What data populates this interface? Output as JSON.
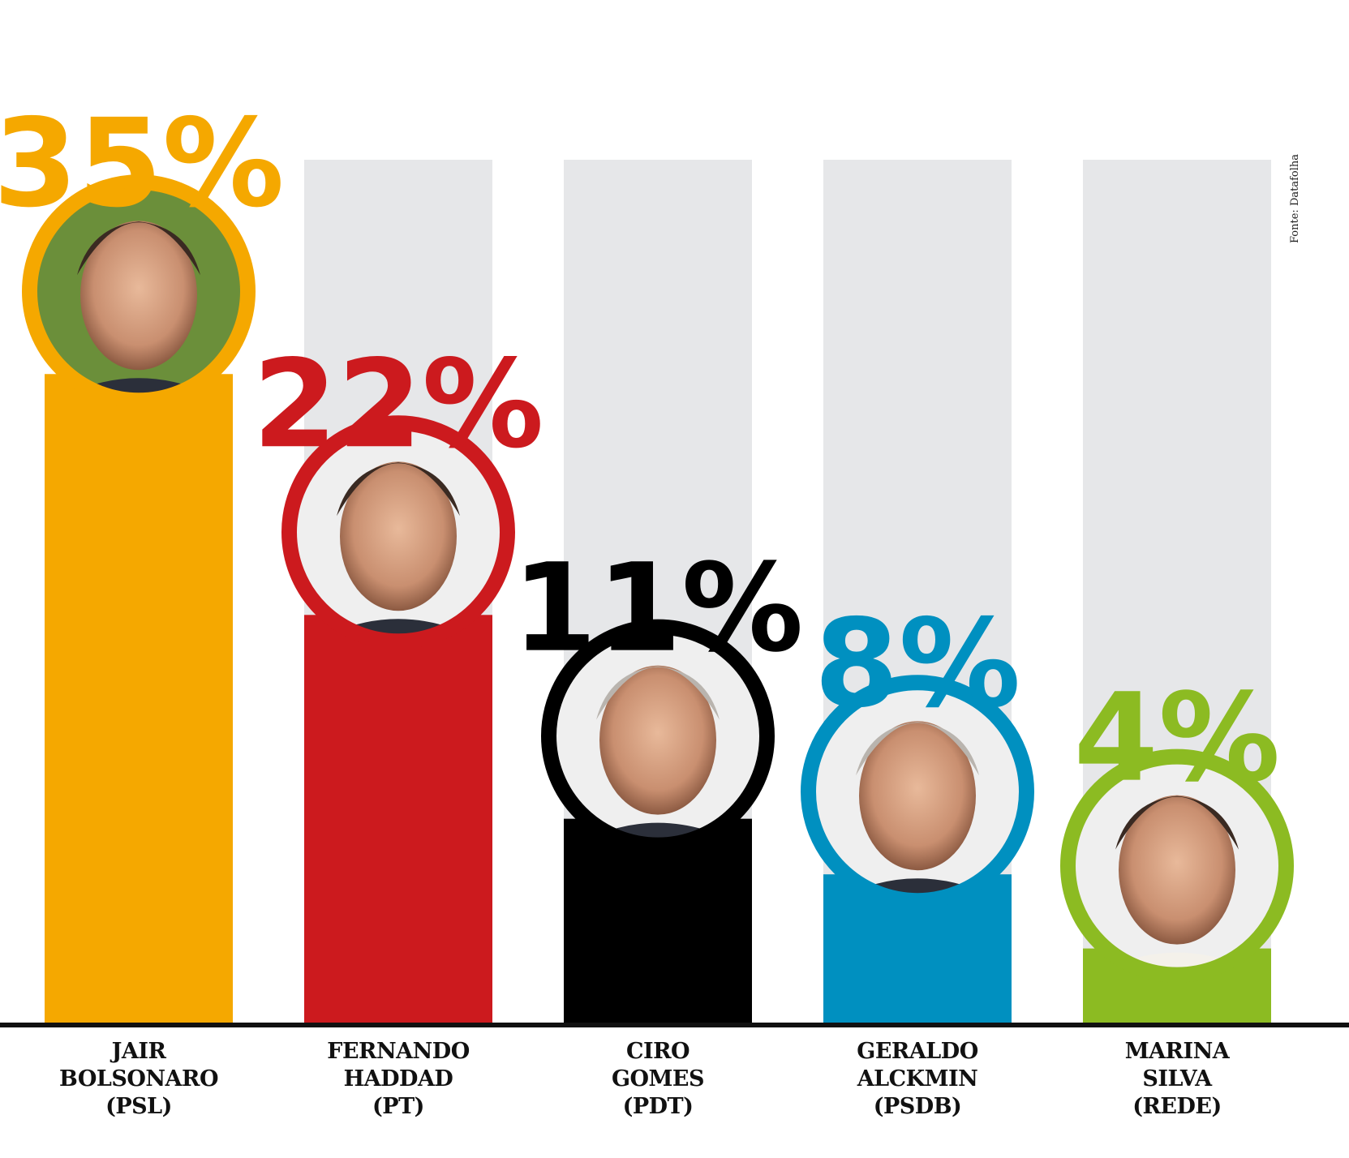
{
  "source": "Fonte: Datafolha",
  "chart_data": {
    "type": "bar",
    "ylim": [
      0,
      40
    ],
    "grid": false,
    "categories": [
      "JAIR BOLSONARO (PSL)",
      "FERNANDO HADDAD (PT)",
      "CIRO GOMES (PDT)",
      "GERALDO ALCKMIN (PSDB)",
      "MARINA SILVA (REDE)"
    ],
    "values": [
      35,
      22,
      11,
      8,
      4
    ],
    "value_labels": [
      "35%",
      "22%",
      "11%",
      "8%",
      "4%"
    ],
    "label_lines": [
      [
        "JAIR",
        "BOLSONARO",
        "(PSL)"
      ],
      [
        "FERNANDO",
        "HADDAD",
        "(PT)"
      ],
      [
        "CIRO",
        "GOMES",
        "(PDT)"
      ],
      [
        "GERALDO",
        "ALCKMIN",
        "(PSDB)"
      ],
      [
        "MARINA",
        "SILVA",
        "(REDE)"
      ]
    ],
    "colors": [
      "#f5a800",
      "#cc1a1e",
      "#000000",
      "#0090c0",
      "#8cbb22"
    ],
    "background_bar_color": "#e6e7e9"
  }
}
